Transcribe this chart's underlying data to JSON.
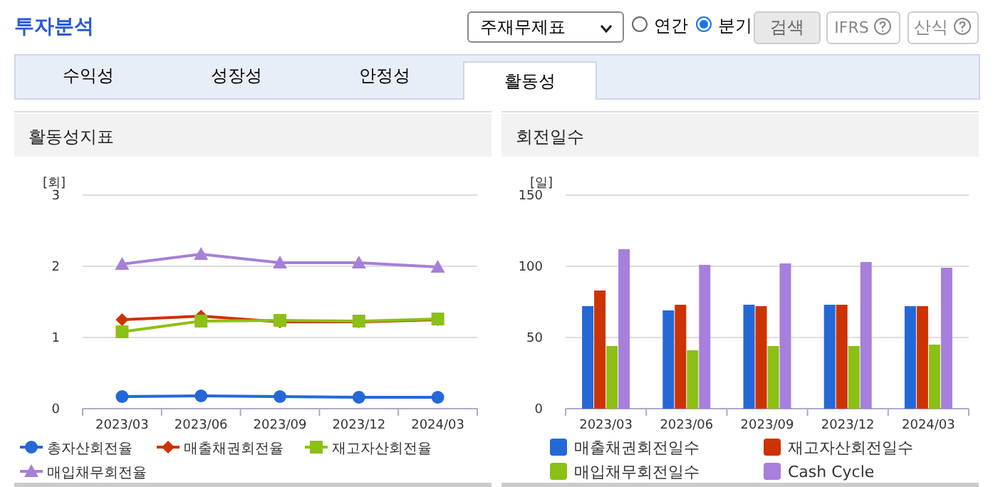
{
  "chart_data": [
    {
      "type": "line",
      "title": "활동성지표",
      "ylabel": "[회]",
      "annotations": [
        "투자분석",
        "주재무제표",
        "연간",
        "분기",
        "검색",
        "IFRS",
        "산식",
        "수익성",
        "성장성",
        "안정성",
        "활동성"
      ],
      "categories": [
        "2023/03",
        "2023/06",
        "2023/09",
        "2023/12",
        "2024/03"
      ],
      "series": [
        {
          "name": "총자산회전율",
          "color": "#2468d8",
          "marker": "circle",
          "values": [
            0.17,
            0.18,
            0.17,
            0.16,
            0.16
          ]
        },
        {
          "name": "매출채권회전율",
          "color": "#cc3300",
          "marker": "diamond",
          "values": [
            1.25,
            1.3,
            1.22,
            1.22,
            1.25
          ]
        },
        {
          "name": "재고자산회전율",
          "color": "#8cc014",
          "marker": "square",
          "values": [
            1.08,
            1.23,
            1.24,
            1.23,
            1.26
          ]
        },
        {
          "name": "매입채무회전율",
          "color": "#a680d8",
          "marker": "triangle",
          "values": [
            2.03,
            2.17,
            2.05,
            2.05,
            1.99
          ]
        }
      ],
      "ylim": [
        0,
        3
      ],
      "yticks": [
        0,
        1,
        2,
        3
      ],
      "grid": "y",
      "legend": "bottom"
    },
    {
      "type": "bar",
      "title": "회전일수",
      "ylabel": "[일]",
      "categories": [
        "2023/03",
        "2023/06",
        "2023/09",
        "2023/12",
        "2024/03"
      ],
      "series": [
        {
          "name": "매출채권회전일수",
          "color": "#2468d8",
          "values": [
            72,
            69,
            73,
            73,
            72
          ]
        },
        {
          "name": "재고자산회전일수",
          "color": "#cc3300",
          "values": [
            83,
            73,
            72,
            73,
            72
          ]
        },
        {
          "name": "매입채무회전일수",
          "color": "#8cc014",
          "values": [
            44,
            41,
            44,
            44,
            45
          ]
        },
        {
          "name": "Cash Cycle",
          "color": "#a77fdc",
          "values": [
            112,
            101,
            102,
            103,
            99
          ]
        }
      ],
      "ylim": [
        0,
        150
      ],
      "yticks": [
        0,
        50,
        100,
        150
      ],
      "grid": "y",
      "legend": "bottom"
    }
  ]
}
